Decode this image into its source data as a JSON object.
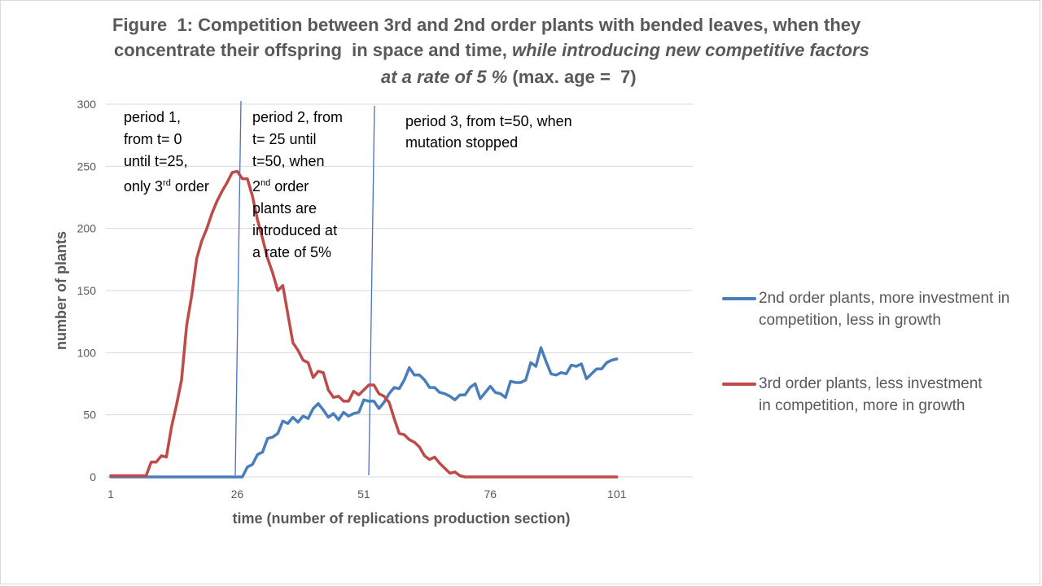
{
  "title": {
    "line1": "Figure  1: Competition between 3rd and 2nd order plants with bended leaves, when they",
    "line2_plain": "concentrate their offspring  in space and time, ",
    "line2_italic": "while introducing new competitive factors",
    "line3_italic": "at a rate of 5 %",
    "line3_plain": " (max. age =  7)"
  },
  "annotations": {
    "period1": [
      "period 1,",
      "from t= 0",
      "until t=25,",
      "only 3",
      "rd",
      " order"
    ],
    "period2": [
      "period 2, from",
      "t= 25 until",
      "t=50, when",
      "2",
      "nd",
      " order",
      "plants are",
      "introduced at",
      "a rate of 5%"
    ],
    "period3": [
      "period 3, from t=50, when",
      "mutation stopped"
    ]
  },
  "colors": {
    "blue": "#4a7ebb",
    "red": "#be4b48",
    "grid": "#d9d9d9",
    "text": "#595959",
    "divider": "#4472c4"
  },
  "chart_data": {
    "type": "line",
    "title": "Figure  1: Competition between 3rd and 2nd order plants with bended leaves, when they concentrate their offspring  in space and time, while introducing new competitive factors at a rate of 5 % (max. age =  7)",
    "xlabel": "time (number of replications production section)",
    "ylabel": "number of plants",
    "ylim": [
      0,
      300
    ],
    "xlim": [
      1,
      116
    ],
    "x_ticks": [
      1,
      26,
      51,
      76,
      101
    ],
    "y_ticks": [
      0,
      50,
      100,
      150,
      200,
      250,
      300
    ],
    "grid": true,
    "legend_position": "right",
    "vertical_markers": [
      26,
      51.5
    ],
    "x": [
      1,
      2,
      3,
      4,
      5,
      6,
      7,
      8,
      9,
      10,
      11,
      12,
      13,
      14,
      15,
      16,
      17,
      18,
      19,
      20,
      21,
      22,
      23,
      24,
      25,
      26,
      27,
      28,
      29,
      30,
      31,
      32,
      33,
      34,
      35,
      36,
      37,
      38,
      39,
      40,
      41,
      42,
      43,
      44,
      45,
      46,
      47,
      48,
      49,
      50,
      51,
      52,
      53,
      54,
      55,
      56,
      57,
      58,
      59,
      60,
      61,
      62,
      63,
      64,
      65,
      66,
      67,
      68,
      69,
      70,
      71,
      72,
      73,
      74,
      75,
      76,
      77,
      78,
      79,
      80,
      81,
      82,
      83,
      84,
      85,
      86,
      87,
      88,
      89,
      90,
      91,
      92,
      93,
      94,
      95,
      96,
      97,
      98,
      99,
      100,
      101
    ],
    "series": [
      {
        "name": "2nd order plants, more investment in competition, less in growth",
        "color": "#4a7ebb",
        "values": [
          0,
          0,
          0,
          0,
          0,
          0,
          0,
          0,
          0,
          0,
          0,
          0,
          0,
          0,
          0,
          0,
          0,
          0,
          0,
          0,
          0,
          0,
          0,
          0,
          0,
          0,
          0,
          8,
          10,
          18,
          20,
          31,
          32,
          35,
          45,
          43,
          48,
          44,
          49,
          47,
          55,
          59,
          54,
          48,
          51,
          46,
          52,
          49,
          51,
          52,
          62,
          61,
          61,
          55,
          60,
          67,
          72,
          71,
          78,
          88,
          82,
          82,
          78,
          72,
          72,
          68,
          67,
          65,
          62,
          66,
          66,
          72,
          75,
          63,
          68,
          73,
          68,
          67,
          64,
          77,
          76,
          76,
          78,
          92,
          89,
          104,
          93,
          83,
          82,
          84,
          83,
          90,
          89,
          91,
          79,
          83,
          87,
          87,
          92,
          94,
          95
        ]
      },
      {
        "name": "3rd order plants, less investment in competition, more in growth",
        "color": "#be4b48",
        "values": [
          1,
          1,
          1,
          1,
          1,
          1,
          1,
          1,
          12,
          12,
          17,
          16,
          40,
          58,
          78,
          122,
          146,
          176,
          190,
          200,
          212,
          222,
          230,
          237,
          245,
          246,
          240,
          240,
          226,
          207,
          192,
          176,
          164,
          150,
          154,
          131,
          108,
          102,
          94,
          92,
          80,
          85,
          84,
          70,
          64,
          65,
          61,
          61,
          69,
          66,
          70,
          74,
          74,
          67,
          65,
          60,
          47,
          35,
          34,
          30,
          28,
          24,
          17,
          14,
          16,
          11,
          7,
          3,
          4,
          1,
          0,
          0,
          0,
          0,
          0,
          0,
          0,
          0,
          0,
          0,
          0,
          0,
          0,
          0,
          0,
          0,
          0,
          0,
          0,
          0,
          0,
          0,
          0,
          0,
          0,
          0,
          0,
          0,
          0,
          0,
          0
        ]
      }
    ]
  }
}
